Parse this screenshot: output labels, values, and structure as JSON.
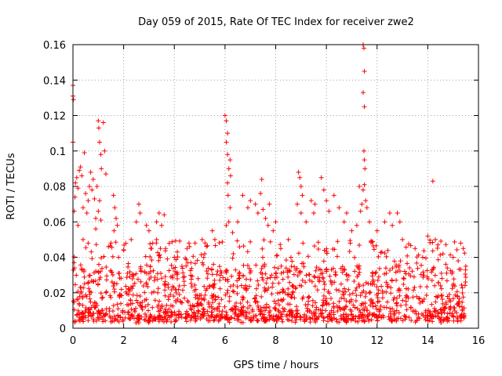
{
  "chart_data": {
    "type": "scatter",
    "title": "Day 059 of 2015, Rate Of TEC Index for receiver zwe2",
    "xlabel": "GPS time / hours",
    "ylabel": "ROTI / TECUs",
    "xlim": [
      0,
      16
    ],
    "ylim": [
      0,
      0.16
    ],
    "x_ticks": [
      0,
      2,
      4,
      6,
      8,
      10,
      12,
      14,
      16
    ],
    "x_tick_labels": [
      "0",
      "2",
      "4",
      "6",
      "8",
      "10",
      "12",
      "14",
      "16"
    ],
    "y_ticks": [
      0,
      0.02,
      0.04,
      0.06,
      0.08,
      0.1,
      0.12,
      0.14,
      0.16
    ],
    "y_tick_labels": [
      "0",
      "0.02",
      "0.04",
      "0.06",
      "0.08",
      "0.1",
      "0.12",
      "0.14",
      "0.16"
    ],
    "grid": true,
    "marker": "+",
    "color": "#ff0000",
    "x_range_of_data": [
      0.0,
      15.5
    ],
    "series": [
      {
        "name": "ROTI",
        "points": [
          [
            0.0,
            0.131
          ],
          [
            0.0,
            0.137
          ],
          [
            0.02,
            0.129
          ],
          [
            0.0,
            0.105
          ],
          [
            0.05,
            0.066
          ],
          [
            0.08,
            0.074
          ],
          [
            0.1,
            0.082
          ],
          [
            0.15,
            0.085
          ],
          [
            0.2,
            0.079
          ],
          [
            0.25,
            0.089
          ],
          [
            0.3,
            0.091
          ],
          [
            0.35,
            0.086
          ],
          [
            0.4,
            0.068
          ],
          [
            0.45,
            0.099
          ],
          [
            0.5,
            0.076
          ],
          [
            0.55,
            0.065
          ],
          [
            0.6,
            0.072
          ],
          [
            0.65,
            0.08
          ],
          [
            0.7,
            0.088
          ],
          [
            0.75,
            0.078
          ],
          [
            0.8,
            0.084
          ],
          [
            0.85,
            0.073
          ],
          [
            0.9,
            0.062
          ],
          [
            0.95,
            0.08
          ],
          [
            1.0,
            0.117
          ],
          [
            1.02,
            0.113
          ],
          [
            1.05,
            0.105
          ],
          [
            1.1,
            0.098
          ],
          [
            1.12,
            0.09
          ],
          [
            1.2,
            0.116
          ],
          [
            1.25,
            0.1
          ],
          [
            1.3,
            0.087
          ],
          [
            1.0,
            0.066
          ],
          [
            1.05,
            0.072
          ],
          [
            1.1,
            0.061
          ],
          [
            1.6,
            0.075
          ],
          [
            1.65,
            0.068
          ],
          [
            1.7,
            0.062
          ],
          [
            1.75,
            0.058
          ],
          [
            1.62,
            0.055
          ],
          [
            0.05,
            0.037
          ],
          [
            0.2,
            0.058
          ],
          [
            0.4,
            0.05
          ],
          [
            0.6,
            0.048
          ],
          [
            0.9,
            0.056
          ],
          [
            1.4,
            0.046
          ],
          [
            1.8,
            0.04
          ],
          [
            2.3,
            0.05
          ],
          [
            2.5,
            0.06
          ],
          [
            2.6,
            0.07
          ],
          [
            2.65,
            0.065
          ],
          [
            3.0,
            0.055
          ],
          [
            3.3,
            0.06
          ],
          [
            3.4,
            0.065
          ],
          [
            3.5,
            0.058
          ],
          [
            3.6,
            0.064
          ],
          [
            3.3,
            0.05
          ],
          [
            3.45,
            0.045
          ],
          [
            2.9,
            0.058
          ],
          [
            3.15,
            0.048
          ],
          [
            4.0,
            0.04
          ],
          [
            4.3,
            0.035
          ],
          [
            4.5,
            0.045
          ],
          [
            5.1,
            0.05
          ],
          [
            5.5,
            0.055
          ],
          [
            5.6,
            0.05
          ],
          [
            5.2,
            0.042
          ],
          [
            6.0,
            0.12
          ],
          [
            6.05,
            0.117
          ],
          [
            6.1,
            0.11
          ],
          [
            6.05,
            0.105
          ],
          [
            6.1,
            0.098
          ],
          [
            6.2,
            0.095
          ],
          [
            6.15,
            0.09
          ],
          [
            6.22,
            0.086
          ],
          [
            6.1,
            0.082
          ],
          [
            6.12,
            0.075
          ],
          [
            6.2,
            0.068
          ],
          [
            6.15,
            0.06
          ],
          [
            6.05,
            0.058
          ],
          [
            6.3,
            0.054
          ],
          [
            6.5,
            0.06
          ],
          [
            6.7,
            0.075
          ],
          [
            6.9,
            0.068
          ],
          [
            7.0,
            0.072
          ],
          [
            7.2,
            0.07
          ],
          [
            7.3,
            0.065
          ],
          [
            7.4,
            0.076
          ],
          [
            7.45,
            0.084
          ],
          [
            7.5,
            0.067
          ],
          [
            7.6,
            0.062
          ],
          [
            7.7,
            0.058
          ],
          [
            7.75,
            0.07
          ],
          [
            7.9,
            0.055
          ],
          [
            8.0,
            0.06
          ],
          [
            8.2,
            0.045
          ],
          [
            8.5,
            0.05
          ],
          [
            8.6,
            0.04
          ],
          [
            8.9,
            0.088
          ],
          [
            8.95,
            0.085
          ],
          [
            9.0,
            0.08
          ],
          [
            9.05,
            0.075
          ],
          [
            8.85,
            0.07
          ],
          [
            9.0,
            0.065
          ],
          [
            9.2,
            0.06
          ],
          [
            9.4,
            0.072
          ],
          [
            9.5,
            0.065
          ],
          [
            9.55,
            0.07
          ],
          [
            9.8,
            0.085
          ],
          [
            9.9,
            0.078
          ],
          [
            10.0,
            0.072
          ],
          [
            10.1,
            0.066
          ],
          [
            10.3,
            0.075
          ],
          [
            10.5,
            0.068
          ],
          [
            10.7,
            0.06
          ],
          [
            10.8,
            0.065
          ],
          [
            11.0,
            0.055
          ],
          [
            11.2,
            0.058
          ],
          [
            11.3,
            0.08
          ],
          [
            11.35,
            0.066
          ],
          [
            11.4,
            0.07
          ],
          [
            11.45,
            0.16
          ],
          [
            11.48,
            0.158
          ],
          [
            11.5,
            0.145
          ],
          [
            11.45,
            0.133
          ],
          [
            11.5,
            0.125
          ],
          [
            11.48,
            0.1
          ],
          [
            11.5,
            0.095
          ],
          [
            11.52,
            0.09
          ],
          [
            11.5,
            0.081
          ],
          [
            11.45,
            0.078
          ],
          [
            11.55,
            0.072
          ],
          [
            11.6,
            0.068
          ],
          [
            11.7,
            0.06
          ],
          [
            12.0,
            0.055
          ],
          [
            12.3,
            0.06
          ],
          [
            12.5,
            0.065
          ],
          [
            12.6,
            0.058
          ],
          [
            12.8,
            0.065
          ],
          [
            12.9,
            0.06
          ],
          [
            13.0,
            0.05
          ],
          [
            13.5,
            0.045
          ],
          [
            13.8,
            0.04
          ],
          [
            14.0,
            0.052
          ],
          [
            14.2,
            0.083
          ],
          [
            14.3,
            0.05
          ],
          [
            14.4,
            0.047
          ],
          [
            14.6,
            0.042
          ],
          [
            15.0,
            0.04
          ],
          [
            15.2,
            0.038
          ],
          [
            15.3,
            0.048
          ],
          [
            15.4,
            0.045
          ],
          [
            15.5,
            0.035
          ]
        ]
      }
    ],
    "dense_band": {
      "description": "dense background cluster of ROTI values across the whole time range",
      "x_range": [
        0.0,
        15.5
      ],
      "typical_range": [
        0.003,
        0.03
      ],
      "occasional_peak": 0.05
    }
  }
}
